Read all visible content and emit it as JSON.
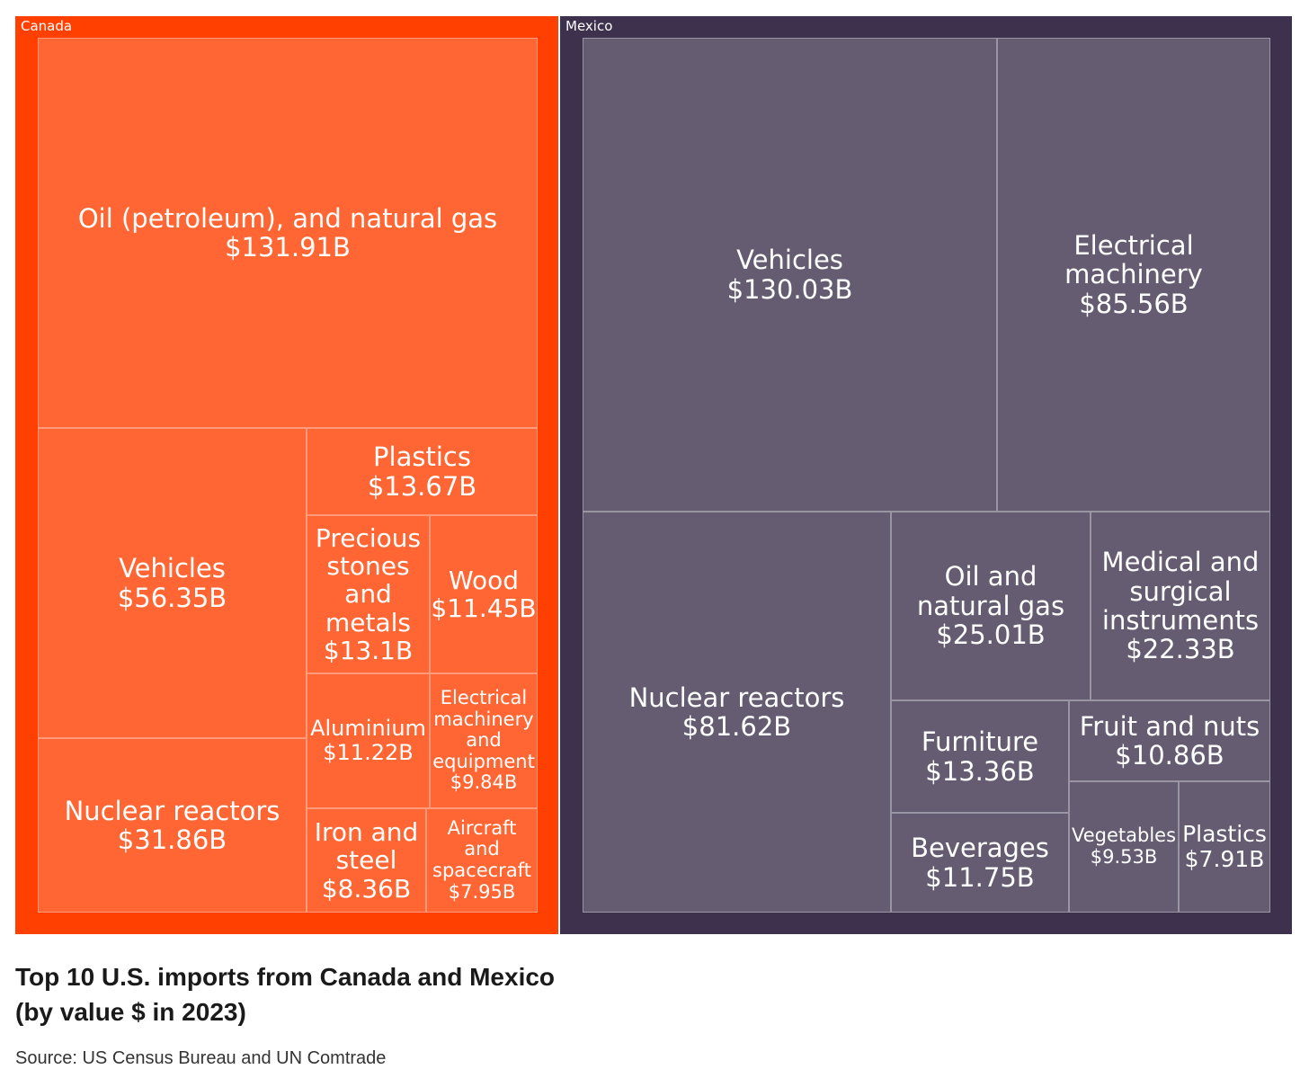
{
  "chart_data": {
    "type": "treemap",
    "title_lines": [
      "Top 10 U.S. imports from Canada and Mexico",
      "(by value $ in 2023)"
    ],
    "source": "Source: US Census Bureau and UN Comtrade",
    "groups": [
      {
        "name": "Canada",
        "color": "#ff4000",
        "cell_color": "#ff6633",
        "items": [
          {
            "name": "Oil (petroleum), and natural gas",
            "value": 131.91,
            "label": "$131.91B"
          },
          {
            "name": "Vehicles",
            "value": 56.35,
            "label": "$56.35B"
          },
          {
            "name": "Nuclear reactors",
            "value": 31.86,
            "label": "$31.86B"
          },
          {
            "name": "Plastics",
            "value": 13.67,
            "label": "$13.67B"
          },
          {
            "name": "Precious stones and metals",
            "value": 13.1,
            "label": "$13.1B"
          },
          {
            "name": "Wood",
            "value": 11.45,
            "label": "$11.45B"
          },
          {
            "name": "Aluminium",
            "value": 11.22,
            "label": "$11.22B"
          },
          {
            "name": "Electrical machinery and equipment",
            "value": 9.84,
            "label": "$9.84B"
          },
          {
            "name": "Iron and steel",
            "value": 8.36,
            "label": "$8.36B"
          },
          {
            "name": "Aircraft and spacecraft",
            "value": 7.95,
            "label": "$7.95B"
          }
        ]
      },
      {
        "name": "Mexico",
        "color": "#3d314d",
        "cell_color": "#655c71",
        "items": [
          {
            "name": "Vehicles",
            "value": 130.03,
            "label": "$130.03B"
          },
          {
            "name": "Electrical machinery",
            "value": 85.56,
            "label": "$85.56B"
          },
          {
            "name": "Nuclear reactors",
            "value": 81.62,
            "label": "$81.62B"
          },
          {
            "name": "Oil and natural gas",
            "value": 25.01,
            "label": "$25.01B"
          },
          {
            "name": "Medical and surgical instruments",
            "value": 22.33,
            "label": "$22.33B"
          },
          {
            "name": "Furniture",
            "value": 13.36,
            "label": "$13.36B"
          },
          {
            "name": "Beverages",
            "value": 11.75,
            "label": "$11.75B"
          },
          {
            "name": "Fruit and nuts",
            "value": 10.86,
            "label": "$10.86B"
          },
          {
            "name": "Vegetables",
            "value": 9.53,
            "label": "$9.53B"
          },
          {
            "name": "Plastics",
            "value": 7.91,
            "label": "$7.91B"
          }
        ]
      }
    ]
  }
}
